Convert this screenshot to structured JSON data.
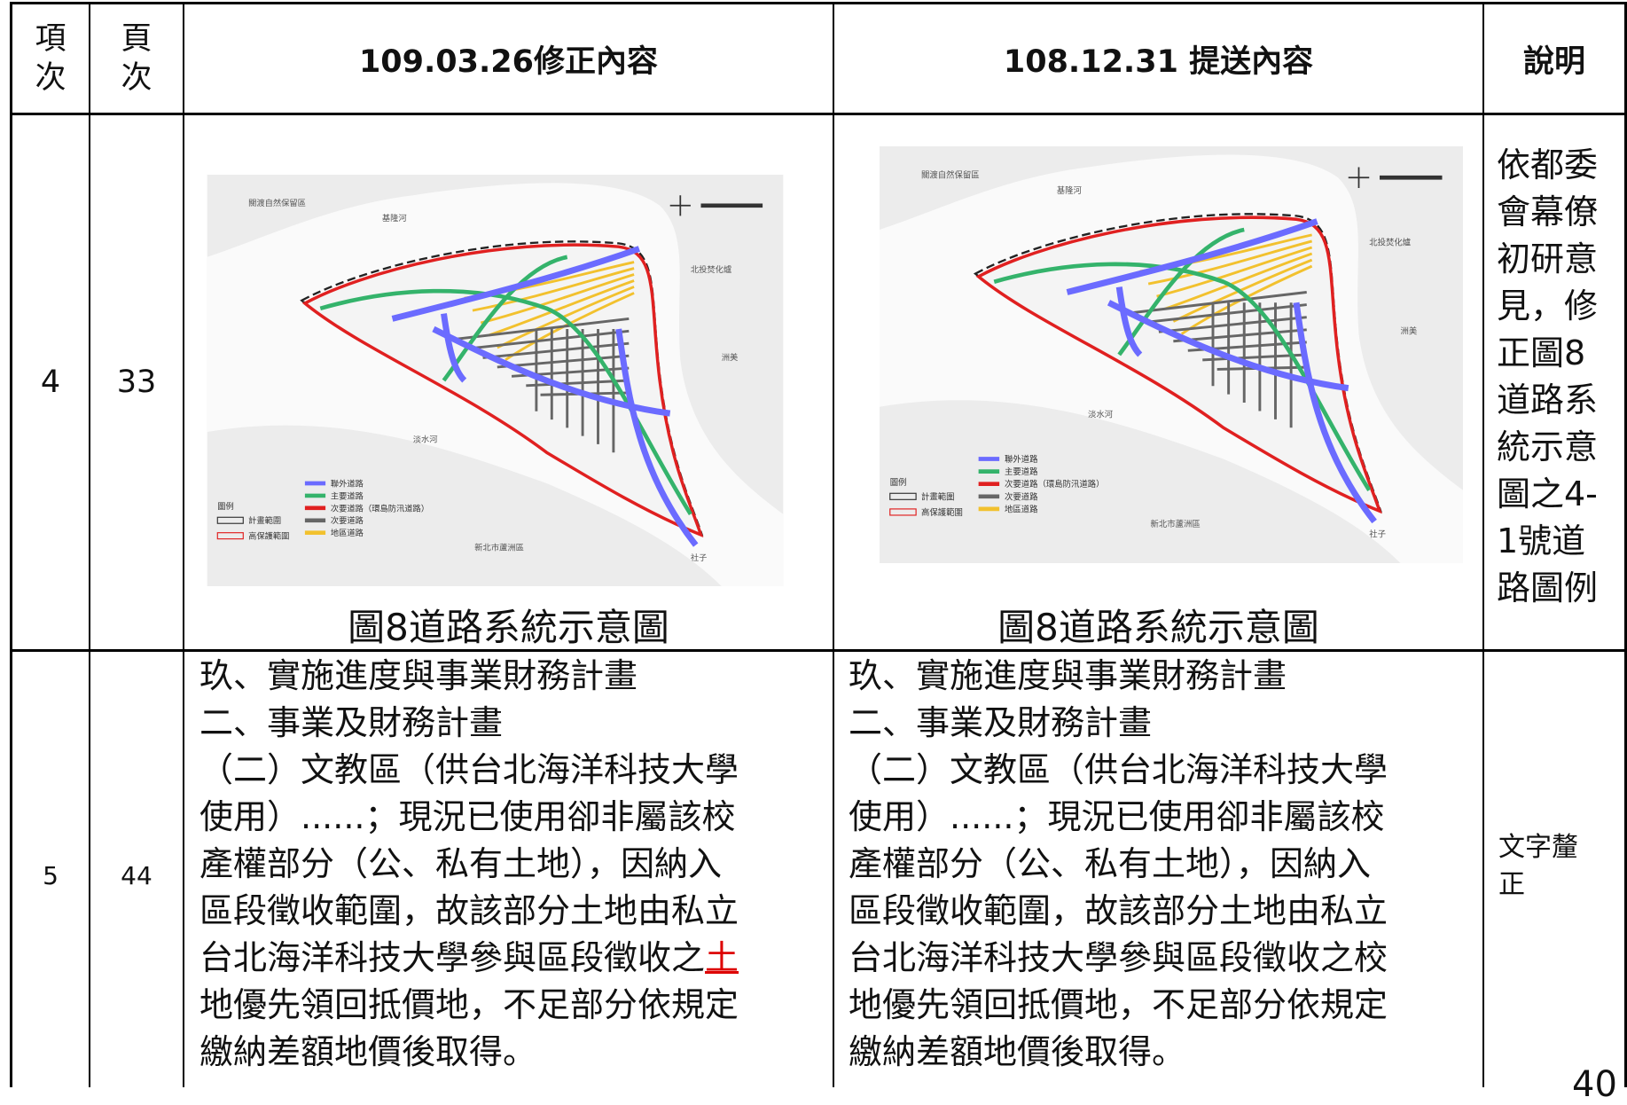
{
  "header": {
    "item": "項次",
    "page": "頁次",
    "revised": "109.03.26修正內容",
    "submitted": "108.12.31 提送內容",
    "note": "說明"
  },
  "rows": [
    {
      "item": "4",
      "page": "33",
      "revised": {
        "figure": {
          "legend_title": "圖例",
          "legend": [
            "聯外道路",
            "主要道路",
            "次要道路（環島防汛道路）",
            "次要道路",
            "地區道路"
          ],
          "boundary": [
            "計畫範圍",
            "高保護範圍"
          ],
          "places": [
            "關渡自然保留區",
            "基隆河",
            "淡水河",
            "北投焚化爐",
            "洲美",
            "新北市蘆洲區",
            "社子"
          ]
        },
        "caption": "圖8道路系統示意圖"
      },
      "submitted": {
        "figure": {
          "legend_title": "圖例",
          "legend": [
            "聯外道路",
            "主要道路",
            "次要道路（環島防汛道路）",
            "次要道路",
            "地區道路"
          ],
          "boundary": [
            "計畫範圍",
            "高保護範圍"
          ],
          "places": [
            "關渡自然保留區",
            "基隆河",
            "淡水河",
            "北投焚化爐",
            "洲美",
            "新北市蘆洲區",
            "社子"
          ]
        },
        "caption": "圖8道路系統示意圖"
      },
      "note": "依都委會幕僚初研意見，修正圖8道路系統示意圖之4-1號道路圖例"
    },
    {
      "item": "5",
      "page": "44",
      "revised": {
        "lines": [
          "玖、實施進度與事業財務計畫",
          "二、事業及財務計畫",
          "（二）文教區（供台北海洋科技大學",
          "使用）......；現況已使用卻非屬該校",
          "產權部分（公、私有土地），因納入",
          "區段徵收範圍，故該部分土地由私立",
          {
            "text": "台北海洋科技大學參與區段徵收之",
            "inserted": "土"
          },
          "地優先領回抵價地，不足部分依規定",
          "繳納差額地價後取得。"
        ]
      },
      "submitted": {
        "lines": [
          "玖、實施進度與事業財務計畫",
          "二、事業及財務計畫",
          "（二）文教區（供台北海洋科技大學",
          "使用）......；現況已使用卻非屬該校",
          "產權部分（公、私有土地），因納入",
          "區段徵收範圍，故該部分土地由私立",
          "台北海洋科技大學參與區段徵收之校",
          "地優先領回抵價地，不足部分依規定",
          "繳納差額地價後取得。"
        ]
      },
      "note": "文字釐正"
    }
  ],
  "page_number": "40"
}
